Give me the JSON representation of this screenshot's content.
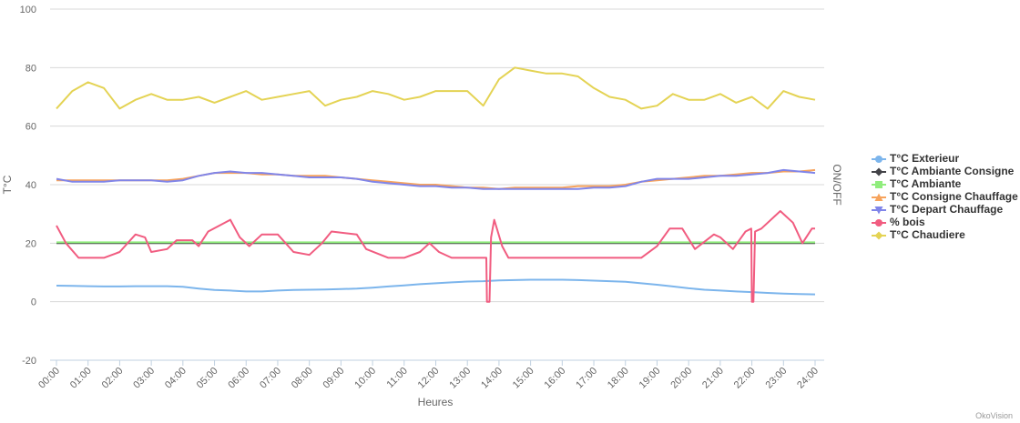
{
  "chart_data": {
    "type": "line",
    "x": [
      0,
      0.5,
      1,
      1.5,
      2,
      2.5,
      3,
      3.5,
      4,
      4.5,
      5,
      5.5,
      6,
      6.5,
      7,
      7.5,
      8,
      8.5,
      9,
      9.5,
      10,
      10.5,
      11,
      11.5,
      12,
      12.5,
      13,
      13.5,
      14,
      14.5,
      15,
      15.5,
      16,
      16.5,
      17,
      17.5,
      18,
      18.5,
      19,
      19.5,
      20,
      20.5,
      21,
      21.5,
      22,
      22.5,
      23,
      23.5,
      24
    ],
    "xlim": [
      0,
      24
    ],
    "xticks": [
      {
        "value": 0,
        "label": "00:00"
      },
      {
        "value": 1,
        "label": "01:00"
      },
      {
        "value": 2,
        "label": "02:00"
      },
      {
        "value": 3,
        "label": "03:00"
      },
      {
        "value": 4,
        "label": "04:00"
      },
      {
        "value": 5,
        "label": "05:00"
      },
      {
        "value": 6,
        "label": "06:00"
      },
      {
        "value": 7,
        "label": "07:00"
      },
      {
        "value": 8,
        "label": "08:00"
      },
      {
        "value": 9,
        "label": "09:00"
      },
      {
        "value": 10,
        "label": "10:00"
      },
      {
        "value": 11,
        "label": "11:00"
      },
      {
        "value": 12,
        "label": "12:00"
      },
      {
        "value": 13,
        "label": "13:00"
      },
      {
        "value": 14,
        "label": "14:00"
      },
      {
        "value": 15,
        "label": "15:00"
      },
      {
        "value": 16,
        "label": "16:00"
      },
      {
        "value": 17,
        "label": "17:00"
      },
      {
        "value": 18,
        "label": "18:00"
      },
      {
        "value": 19,
        "label": "19:00"
      },
      {
        "value": 20,
        "label": "20:00"
      },
      {
        "value": 21,
        "label": "21:00"
      },
      {
        "value": 22,
        "label": "22:00"
      },
      {
        "value": 23,
        "label": "23:00"
      },
      {
        "value": 24,
        "label": "24:00"
      }
    ],
    "ylim": [
      -20,
      100
    ],
    "yticks": [
      -20,
      0,
      20,
      40,
      60,
      80,
      100
    ],
    "grid": true,
    "x_label": "Heures",
    "y_label": "T°C",
    "y2_label": "ON/OFF",
    "credits": "OkoVision",
    "legend": "right",
    "series": [
      {
        "name": "T°C Exterieur",
        "color": "#7cb5ec",
        "marker": "circle",
        "values": [
          5.5,
          5.4,
          5.3,
          5.2,
          5.2,
          5.3,
          5.3,
          5.3,
          5.1,
          4.5,
          4,
          3.8,
          3.5,
          3.5,
          3.8,
          4,
          4.1,
          4.2,
          4.3,
          4.5,
          4.8,
          5.2,
          5.6,
          6,
          6.3,
          6.6,
          6.9,
          7,
          7.3,
          7.4,
          7.5,
          7.5,
          7.5,
          7.4,
          7.2,
          7,
          6.8,
          6.3,
          5.8,
          5.2,
          4.6,
          4.1,
          3.8,
          3.5,
          3.3,
          3,
          2.8,
          2.6,
          2.5
        ]
      },
      {
        "name": "T°C Ambiante Consigne",
        "color": "#434348",
        "marker": "diamond",
        "values": [
          20,
          20,
          20,
          20,
          20,
          20,
          20,
          20,
          20,
          20,
          20,
          20,
          20,
          20,
          20,
          20,
          20,
          20,
          20,
          20,
          20,
          20,
          20,
          20,
          20,
          20,
          20,
          20,
          20,
          20,
          20,
          20,
          20,
          20,
          20,
          20,
          20,
          20,
          20,
          20,
          20,
          20,
          20,
          20,
          20,
          20,
          20,
          20,
          20
        ]
      },
      {
        "name": "T°C Ambiante",
        "color": "#90ed7d",
        "marker": "square",
        "values": [
          20.3,
          20.3,
          20.3,
          20.3,
          20.3,
          20.3,
          20.3,
          20.3,
          20.3,
          20.3,
          20.3,
          20.3,
          20.3,
          20.3,
          20.3,
          20.3,
          20.3,
          20.3,
          20.3,
          20.3,
          20.3,
          20.3,
          20.3,
          20.3,
          20.3,
          20.3,
          20.3,
          20.3,
          20.3,
          20.3,
          20.3,
          20.3,
          20.3,
          20.3,
          20.3,
          20.3,
          20.3,
          20.3,
          20.3,
          20.3,
          20.3,
          20.3,
          20.3,
          20.3,
          20.3,
          20.3,
          20.3,
          20.3,
          20.3
        ]
      },
      {
        "name": "T°C Consigne Chauffage",
        "color": "#f7a35c",
        "marker": "triangle",
        "values": [
          41.5,
          41.5,
          41.5,
          41.5,
          41.5,
          41.5,
          41.5,
          41.5,
          42,
          43,
          44,
          44,
          44,
          43.5,
          43.5,
          43,
          43,
          43,
          42.5,
          42,
          41.5,
          41,
          40.5,
          40,
          40,
          39.5,
          39,
          39,
          38.5,
          39,
          39,
          39,
          39,
          39.5,
          39.5,
          39.5,
          40,
          41,
          41.5,
          42,
          42.5,
          43,
          43,
          43.5,
          44,
          44,
          44.5,
          44.5,
          45
        ]
      },
      {
        "name": "T°C Depart Chauffage",
        "color": "#8085e9",
        "marker": "triangle-down",
        "values": [
          42,
          41,
          41,
          41,
          41.5,
          41.5,
          41.5,
          41,
          41.5,
          43,
          44,
          44.5,
          44,
          44,
          43.5,
          43,
          42.5,
          42.5,
          42.5,
          42,
          41,
          40.5,
          40,
          39.5,
          39.5,
          39,
          39,
          38.5,
          38.5,
          38.5,
          38.5,
          38.5,
          38.5,
          38.5,
          39,
          39,
          39.5,
          41,
          42,
          42,
          42,
          42.5,
          43,
          43,
          43.5,
          44,
          45,
          44.5,
          44
        ]
      },
      {
        "name": "% bois",
        "color": "#f15c80",
        "marker": "circle",
        "x": [
          0,
          0.3,
          0.7,
          1.5,
          2,
          2.5,
          2.8,
          3,
          3.5,
          3.8,
          4.3,
          4.5,
          4.8,
          5.5,
          5.8,
          6.1,
          6.5,
          7,
          7.5,
          8,
          8.4,
          8.7,
          9.5,
          9.8,
          10.5,
          11,
          11.5,
          11.8,
          12.1,
          12.5,
          13.6,
          13.62,
          13.7,
          13.75,
          13.85,
          14.1,
          14.3,
          18.5,
          19,
          19.4,
          19.8,
          20.2,
          20.8,
          21,
          21.4,
          21.8,
          21.98,
          22,
          22.05,
          22.1,
          22.3,
          22.9,
          23.3,
          23.6,
          23.9,
          24
        ],
        "values": [
          26,
          20,
          15,
          15,
          17,
          23,
          22,
          17,
          18,
          21,
          21,
          19,
          24,
          28,
          22,
          19,
          23,
          23,
          17,
          16,
          20,
          24,
          23,
          18,
          15,
          15,
          17,
          20,
          17,
          15,
          15,
          0,
          0,
          22,
          28,
          19,
          15,
          15,
          19,
          25,
          25,
          18,
          23,
          22,
          18,
          24,
          25,
          0,
          0,
          24,
          25,
          31,
          27,
          20,
          25,
          25
        ]
      },
      {
        "name": "T°C Chaudiere",
        "color": "#e4d354",
        "marker": "diamond",
        "values": [
          66,
          72,
          75,
          73,
          66,
          69,
          71,
          69,
          69,
          70,
          68,
          70,
          72,
          69,
          70,
          71,
          72,
          67,
          69,
          70,
          72,
          71,
          69,
          70,
          72,
          72,
          72,
          67,
          76,
          80,
          79,
          78,
          78,
          77,
          73,
          70,
          69,
          66,
          67,
          71,
          69,
          69,
          71,
          68,
          70,
          66,
          72,
          70,
          69
        ]
      }
    ]
  }
}
